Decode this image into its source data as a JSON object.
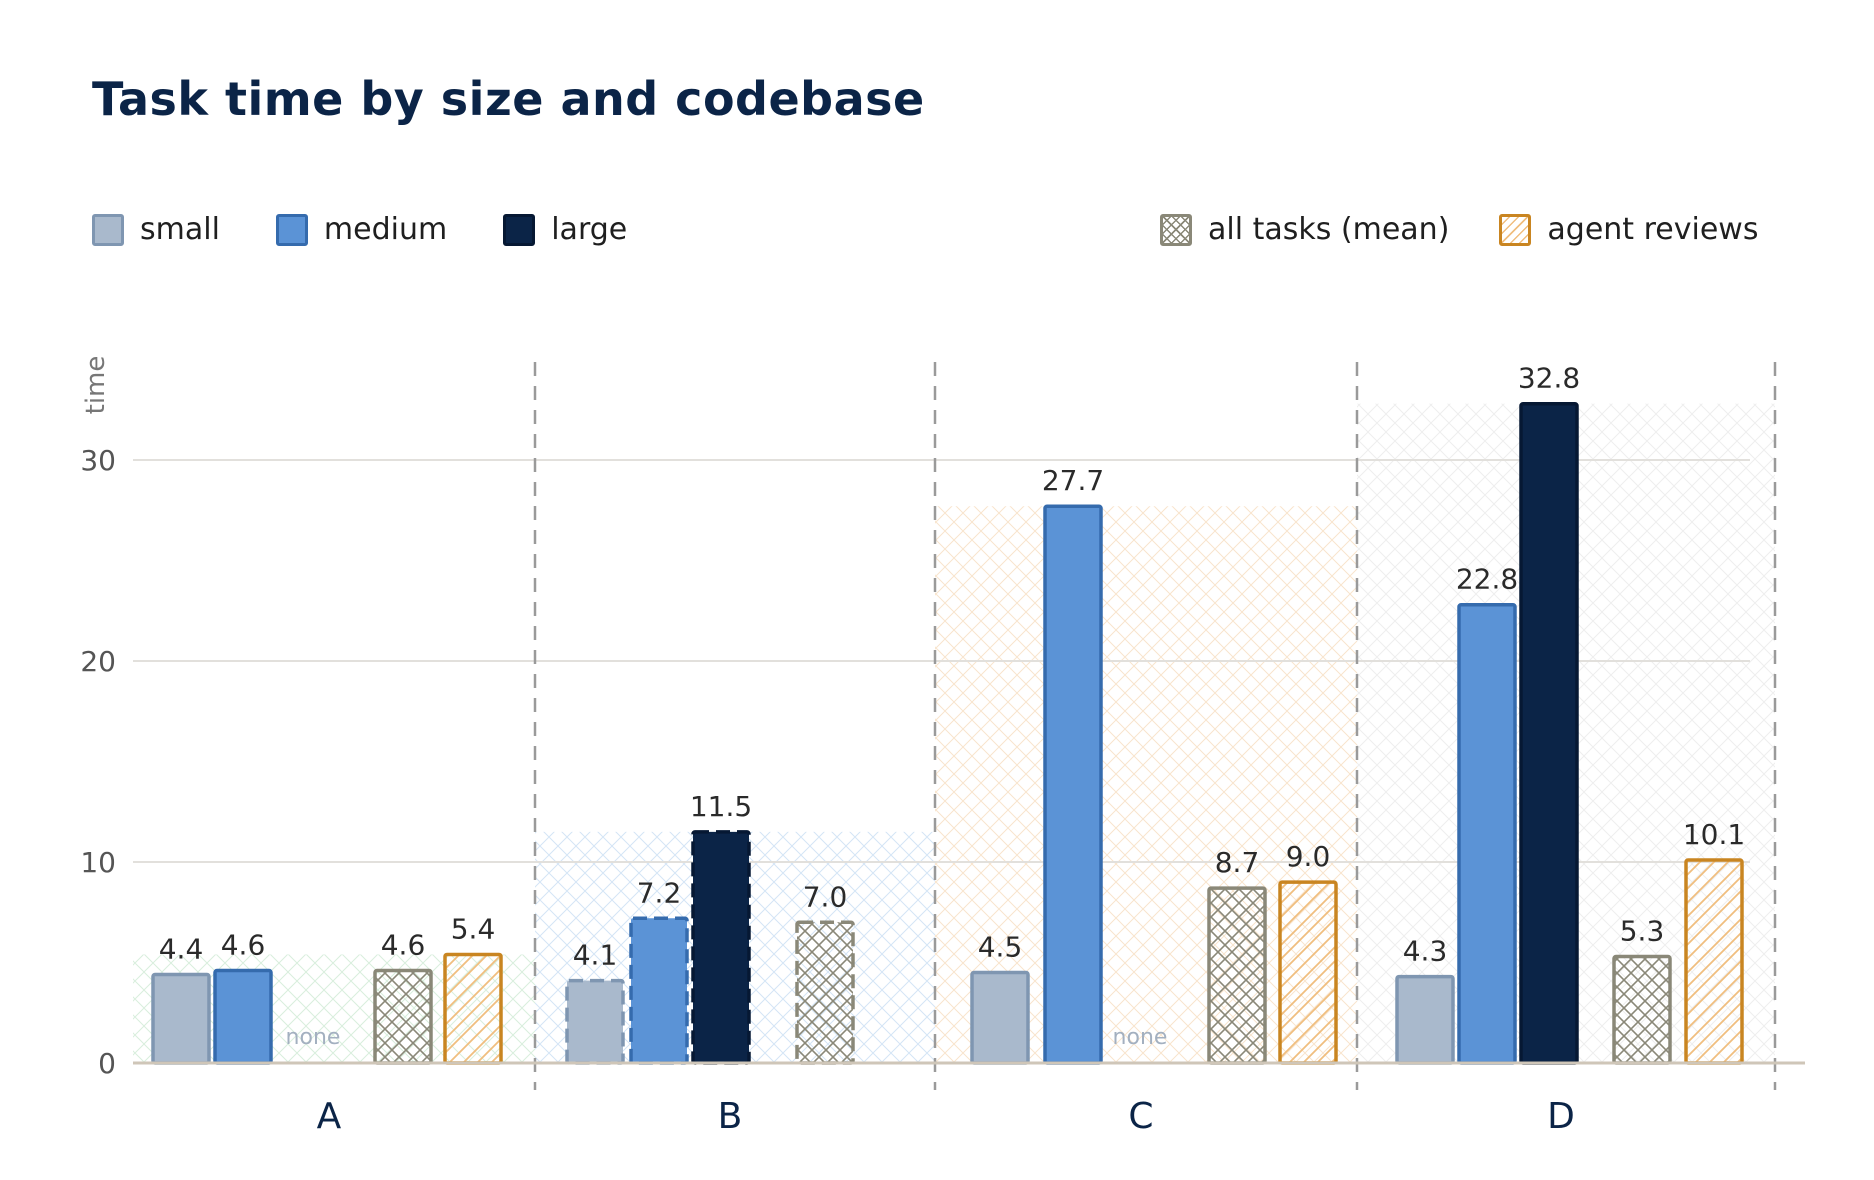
{
  "chart_data": {
    "type": "bar",
    "title": "Task time by size and codebase",
    "ylabel": "time",
    "xlabel": "",
    "ylim": [
      0,
      35
    ],
    "yticks": [
      0,
      10,
      20,
      30
    ],
    "grid": true,
    "categories": [
      "A",
      "B",
      "C",
      "D"
    ],
    "series": [
      {
        "name": "small",
        "values": [
          4.4,
          4.1,
          4.5,
          4.3
        ]
      },
      {
        "name": "medium",
        "values": [
          4.6,
          7.2,
          27.7,
          22.8
        ]
      },
      {
        "name": "large",
        "values": [
          null,
          11.5,
          null,
          32.8
        ]
      },
      {
        "name": "all tasks (mean)",
        "values": [
          4.6,
          7.0,
          8.7,
          5.3
        ]
      },
      {
        "name": "agent reviews",
        "values": [
          5.4,
          null,
          9.0,
          10.1
        ]
      }
    ],
    "missing_label": "none",
    "legend_position": "top",
    "colors": {
      "small": "#a9b9cc",
      "medium": "#5b93d6",
      "large": "#0b2447",
      "all tasks (mean)": "#8a8878",
      "agent reviews": "#c98521"
    },
    "title_color": "#0b2447"
  }
}
